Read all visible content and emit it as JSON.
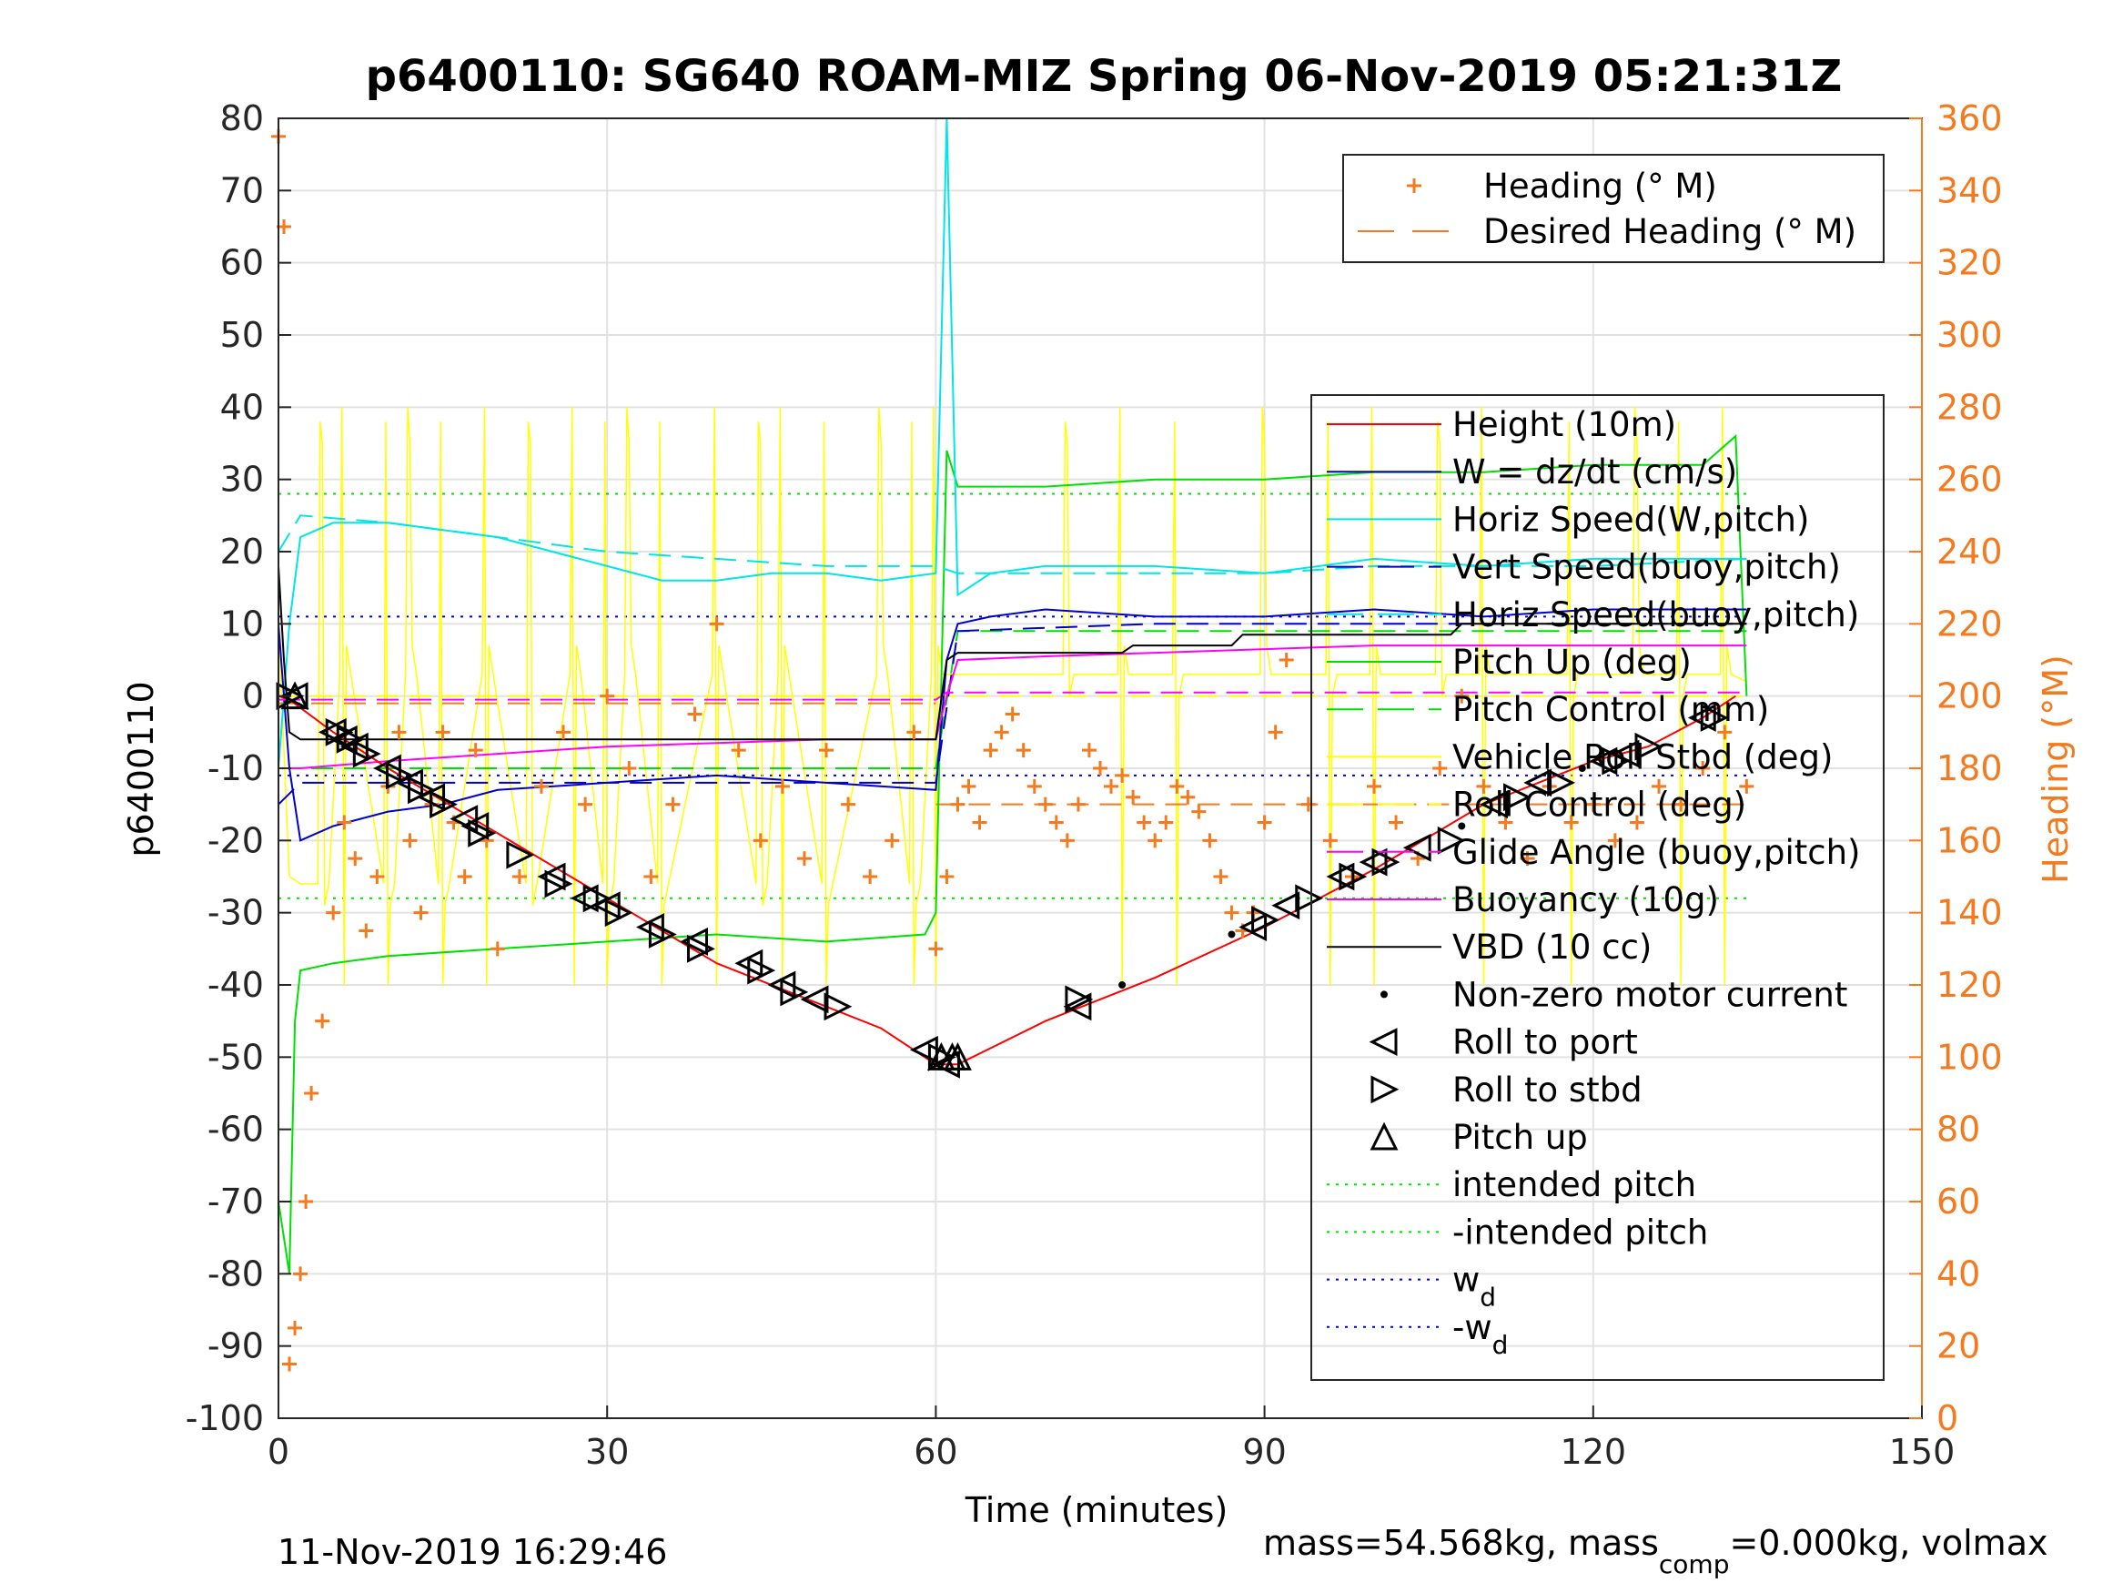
{
  "chart_data": {
    "type": "line",
    "title": "p6400110: SG640 ROAM-MIZ Spring 06-Nov-2019 05:21:31Z",
    "xlabel": "Time (minutes)",
    "ylabel": "p6400110",
    "y2label": "Heading (°M)",
    "xlim": [
      0,
      150
    ],
    "ylim": [
      -100,
      80
    ],
    "y2lim": [
      0,
      360
    ],
    "xticks": [
      "0",
      "30",
      "60",
      "90",
      "120",
      "150"
    ],
    "yticks": [
      "80",
      "70",
      "60",
      "50",
      "40",
      "30",
      "20",
      "10",
      "0",
      "-10",
      "-20",
      "-30",
      "-40",
      "-50",
      "-60",
      "-70",
      "-80",
      "-90",
      "-100"
    ],
    "y2ticks": [
      "360",
      "340",
      "320",
      "300",
      "280",
      "260",
      "240",
      "220",
      "200",
      "180",
      "160",
      "140",
      "120",
      "100",
      "80",
      "60",
      "40",
      "20",
      "0"
    ],
    "grid": true,
    "footer_left": "11-Nov-2019 16:29:46",
    "footer_right_a": "mass=54.568kg, mass",
    "footer_right_sub": "comp",
    "footer_right_b": "=0.000kg, volmax",
    "colors": {
      "heading": "#f47a1f",
      "height": "#ff0000",
      "w": "#0000cc",
      "horiz": "#00e5e5",
      "pitch": "#00e000",
      "roll": "#ffff00",
      "buoyancy": "#ff00ff",
      "vbd": "#000000"
    },
    "legend_heading": [
      {
        "label": "Heading (° M)",
        "style": "plus"
      },
      {
        "label": "Desired Heading (° M)",
        "style": "dash-orange"
      }
    ],
    "legend_main": [
      {
        "label": "Height (10m)",
        "style": "line",
        "color": "#ff0000"
      },
      {
        "label": "W = dz/dt (cm/s)",
        "style": "line",
        "color": "#0000cc"
      },
      {
        "label": "Horiz Speed(W,pitch)",
        "style": "line",
        "color": "#00e5e5"
      },
      {
        "label": "Vert Speed(buoy,pitch)",
        "style": "dash",
        "color": "#0000cc"
      },
      {
        "label": "Horiz Speed(buoy,pitch)",
        "style": "dash",
        "color": "#00e5e5"
      },
      {
        "label": "Pitch Up (deg)",
        "style": "line",
        "color": "#00e000"
      },
      {
        "label": "Pitch Control (mm)",
        "style": "dash",
        "color": "#00e000"
      },
      {
        "label": "Vehicle Roll Stbd (deg)",
        "style": "line",
        "color": "#ffff00"
      },
      {
        "label": "Roll Control (deg)",
        "style": "dash",
        "color": "#ffff00"
      },
      {
        "label": "Glide Angle (buoy,pitch)",
        "style": "dash",
        "color": "#ff00ff"
      },
      {
        "label": "Buoyancy (10g)",
        "style": "line",
        "color": "#ff00ff"
      },
      {
        "label": "VBD (10 cc)",
        "style": "line",
        "color": "#000000"
      },
      {
        "label": "Non-zero motor current",
        "style": "dot",
        "color": "#000000"
      },
      {
        "label": "Roll to port",
        "style": "tri-left",
        "color": "#000000"
      },
      {
        "label": "Roll to stbd",
        "style": "tri-right",
        "color": "#000000"
      },
      {
        "label": "Pitch up",
        "style": "tri-up",
        "color": "#000000"
      },
      {
        "label": "intended pitch",
        "style": "dot-line",
        "color": "#00e000"
      },
      {
        "label": "-intended pitch",
        "style": "dot-line",
        "color": "#00e000"
      },
      {
        "label": "w",
        "sub": "d",
        "style": "dot-line",
        "color": "#0000cc"
      },
      {
        "label": "-w",
        "sub": "d",
        "style": "dot-line",
        "color": "#0000cc"
      }
    ],
    "series": {
      "height": {
        "x": [
          0,
          1,
          5,
          10,
          20,
          30,
          40,
          50,
          55,
          60,
          62,
          70,
          80,
          90,
          100,
          110,
          120,
          125,
          130,
          133
        ],
        "y": [
          0,
          -0.5,
          -5,
          -10,
          -19,
          -28,
          -37,
          -43,
          -46,
          -51,
          -51,
          -45,
          -39,
          -32,
          -24,
          -15,
          -9,
          -7,
          -3,
          0
        ]
      },
      "w": {
        "x": [
          0,
          1,
          2,
          5,
          10,
          15,
          20,
          30,
          40,
          50,
          60,
          61,
          62,
          65,
          70,
          80,
          90,
          100,
          110,
          120,
          130,
          134
        ],
        "y": [
          10,
          -10,
          -20,
          -18,
          -16,
          -15,
          -13,
          -12,
          -11,
          -12,
          -13,
          5,
          10,
          11,
          12,
          11,
          11,
          12,
          11,
          12,
          12,
          12
        ]
      },
      "horiz_w": {
        "x": [
          0,
          1,
          2,
          5,
          10,
          15,
          20,
          25,
          30,
          35,
          40,
          45,
          50,
          55,
          60,
          61,
          62,
          65,
          70,
          80,
          90,
          100,
          110,
          120,
          130,
          134
        ],
        "y": [
          -10,
          10,
          22,
          24,
          24,
          23,
          22,
          20,
          18,
          16,
          16,
          17,
          17,
          16,
          17,
          80,
          14,
          17,
          18,
          18,
          17,
          19,
          18,
          19,
          19,
          19
        ]
      },
      "horiz_buoy": {
        "x": [
          0,
          2,
          10,
          20,
          30,
          40,
          50,
          60,
          62,
          70,
          80,
          90,
          100,
          110,
          120,
          134
        ],
        "y": [
          20,
          25,
          24,
          22,
          20,
          19,
          18,
          18,
          17,
          17,
          17,
          17,
          18,
          18,
          18,
          19
        ]
      },
      "vert_buoy": {
        "x": [
          0,
          2,
          10,
          30,
          60,
          62,
          80,
          100,
          120,
          134
        ],
        "y": [
          -15,
          -12,
          -12,
          -12,
          -12,
          9,
          10,
          10,
          10,
          10
        ]
      },
      "pitch": {
        "x": [
          0,
          1,
          1.5,
          2,
          5,
          10,
          20,
          30,
          40,
          50,
          59,
          60,
          61,
          62,
          70,
          80,
          90,
          100,
          110,
          120,
          130,
          133,
          134
        ],
        "y": [
          -70,
          -80,
          -45,
          -38,
          -37,
          -36,
          -35,
          -34,
          -33,
          -34,
          -33,
          -30,
          34,
          29,
          29,
          30,
          30,
          31,
          31,
          32,
          32,
          36,
          0
        ]
      },
      "pitch_ctrl": {
        "x": [
          0,
          2,
          60,
          62,
          134
        ],
        "y": [
          -10,
          -10,
          -10,
          9,
          9
        ]
      },
      "roll_spikes": [
        4,
        6,
        10,
        12,
        15,
        19,
        23,
        27,
        30,
        32,
        35,
        40,
        44,
        46,
        50,
        55,
        58,
        60,
        72,
        77,
        82,
        90,
        96,
        100,
        106,
        110,
        118,
        124,
        128,
        132
      ],
      "buoyancy": {
        "x": [
          0,
          2,
          10,
          20,
          30,
          40,
          50,
          60,
          61,
          62,
          70,
          80,
          90,
          100,
          110,
          120,
          134
        ],
        "y": [
          -10,
          -10,
          -9,
          -8,
          -7,
          -6.5,
          -6,
          -6,
          0,
          5,
          5.5,
          6,
          6.5,
          7,
          7,
          7,
          7
        ]
      },
      "glide": {
        "x": [
          0,
          60,
          61,
          134
        ],
        "y": [
          -0.5,
          -0.5,
          0.5,
          0.5
        ]
      },
      "vbd": {
        "x": [
          0,
          0.5,
          1,
          2,
          60,
          61,
          62,
          77,
          78,
          87,
          88,
          107,
          108,
          134
        ],
        "y": [
          18,
          5,
          -5,
          -6,
          -6,
          5,
          6,
          6,
          7,
          7,
          8.5,
          8.5,
          10,
          10
        ]
      },
      "intended_pitch": 28,
      "wd": 11,
      "desired_heading": [
        [
          0,
          60,
          198
        ],
        [
          60,
          134,
          170
        ]
      ],
      "heading": {
        "x": [
          0,
          0.5,
          1,
          1.5,
          2,
          2.5,
          3,
          4,
          5,
          6,
          7,
          8,
          9,
          10,
          11,
          12,
          13,
          14,
          15,
          16,
          17,
          18,
          19,
          20,
          22,
          24,
          26,
          28,
          30,
          32,
          34,
          36,
          38,
          40,
          42,
          44,
          46,
          48,
          50,
          52,
          54,
          56,
          58,
          60,
          61,
          62,
          63,
          64,
          65,
          66,
          67,
          68,
          69,
          70,
          71,
          72,
          73,
          74,
          75,
          76,
          77,
          78,
          79,
          80,
          81,
          82,
          83,
          84,
          85,
          86,
          87,
          88,
          89,
          90,
          91,
          92,
          94,
          96,
          98,
          100,
          102,
          104,
          106,
          108,
          110,
          112,
          114,
          116,
          118,
          120,
          122,
          124,
          126,
          128,
          130,
          132,
          134
        ],
        "y": [
          355,
          330,
          15,
          25,
          40,
          60,
          90,
          110,
          140,
          165,
          155,
          135,
          150,
          175,
          190,
          160,
          140,
          170,
          190,
          165,
          150,
          185,
          160,
          130,
          150,
          175,
          190,
          170,
          200,
          180,
          150,
          170,
          195,
          220,
          185,
          160,
          175,
          155,
          185,
          170,
          150,
          160,
          190,
          130,
          150,
          170,
          175,
          165,
          185,
          190,
          195,
          185,
          175,
          170,
          165,
          160,
          170,
          185,
          180,
          175,
          178,
          172,
          165,
          160,
          165,
          175,
          172,
          168,
          160,
          150,
          140,
          135,
          140,
          165,
          190,
          210,
          170,
          160,
          150,
          175,
          165,
          155,
          180,
          200,
          175,
          165,
          155,
          175,
          165,
          170,
          160,
          165,
          175,
          170,
          180,
          190,
          175
        ]
      },
      "roll_port_marks": [
        [
          1.5,
          0
        ],
        [
          5,
          -5
        ],
        [
          6,
          -6
        ],
        [
          7,
          -7
        ],
        [
          10,
          -10
        ],
        [
          12,
          -12
        ],
        [
          14,
          -14
        ],
        [
          17,
          -17
        ],
        [
          18,
          -18
        ],
        [
          25,
          -25
        ],
        [
          28,
          -28
        ],
        [
          30,
          -29
        ],
        [
          34,
          -32
        ],
        [
          38,
          -34
        ],
        [
          43,
          -37
        ],
        [
          46,
          -40
        ],
        [
          49,
          -42
        ],
        [
          59,
          -49
        ],
        [
          61,
          -51
        ],
        [
          73,
          -43
        ],
        [
          89,
          -32
        ],
        [
          92,
          -29
        ],
        [
          97,
          -25
        ],
        [
          100,
          -23
        ],
        [
          104,
          -21
        ],
        [
          111,
          -15
        ],
        [
          115,
          -12
        ],
        [
          121,
          -9
        ],
        [
          123,
          -8
        ],
        [
          130,
          -3
        ]
      ],
      "roll_stbd_marks": [
        [
          1,
          0
        ],
        [
          5.5,
          -5
        ],
        [
          6.5,
          -6
        ],
        [
          8,
          -8
        ],
        [
          11,
          -11
        ],
        [
          13,
          -13
        ],
        [
          15,
          -15
        ],
        [
          18.5,
          -19
        ],
        [
          22,
          -22
        ],
        [
          25.5,
          -26
        ],
        [
          29,
          -28
        ],
        [
          31,
          -30
        ],
        [
          35,
          -33
        ],
        [
          38.5,
          -35
        ],
        [
          44,
          -38
        ],
        [
          47,
          -41
        ],
        [
          51,
          -43
        ],
        [
          60.5,
          -50
        ],
        [
          73,
          -42
        ],
        [
          90,
          -31
        ],
        [
          94,
          -28
        ],
        [
          98,
          -25
        ],
        [
          101,
          -23
        ],
        [
          107,
          -20
        ],
        [
          113,
          -14
        ],
        [
          117,
          -12
        ],
        [
          122,
          -9
        ],
        [
          125,
          -7
        ],
        [
          131,
          -3
        ]
      ],
      "pitch_up_marks": [
        [
          1.5,
          0
        ],
        [
          60.5,
          -50
        ],
        [
          61.5,
          -50
        ],
        [
          62,
          -50
        ]
      ],
      "motor_dots": [
        [
          87,
          -33
        ],
        [
          77,
          -40
        ],
        [
          108,
          -18
        ],
        [
          119,
          -10
        ]
      ]
    }
  }
}
